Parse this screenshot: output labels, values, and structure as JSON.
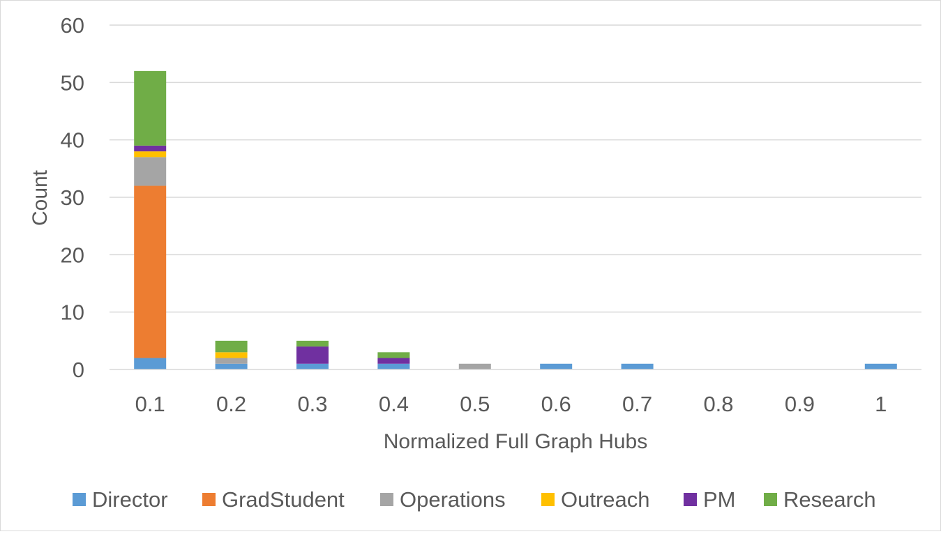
{
  "chart_data": {
    "type": "bar",
    "stacked": true,
    "categories": [
      "0.1",
      "0.2",
      "0.3",
      "0.4",
      "0.5",
      "0.6",
      "0.7",
      "0.8",
      "0.9",
      "1"
    ],
    "series": [
      {
        "name": "Director",
        "color": "#5b9bd5",
        "values": [
          2,
          1,
          1,
          1,
          0,
          1,
          1,
          0,
          0,
          1
        ]
      },
      {
        "name": "GradStudent",
        "color": "#ed7d31",
        "values": [
          30,
          0,
          0,
          0,
          0,
          0,
          0,
          0,
          0,
          0
        ]
      },
      {
        "name": "Operations",
        "color": "#a5a5a5",
        "values": [
          5,
          1,
          0,
          0,
          1,
          0,
          0,
          0,
          0,
          0
        ]
      },
      {
        "name": "Outreach",
        "color": "#ffc000",
        "values": [
          1,
          1,
          0,
          0,
          0,
          0,
          0,
          0,
          0,
          0
        ]
      },
      {
        "name": "PM",
        "color": "#7030a0",
        "values": [
          1,
          0,
          3,
          1,
          0,
          0,
          0,
          0,
          0,
          0
        ]
      },
      {
        "name": "Research",
        "color": "#70ad47",
        "values": [
          13,
          2,
          1,
          1,
          0,
          0,
          0,
          0,
          0,
          0
        ]
      }
    ],
    "xlabel": "Normalized Full Graph Hubs",
    "ylabel": "Count",
    "ylim": [
      0,
      60
    ],
    "yticks": [
      0,
      10,
      20,
      30,
      40,
      50,
      60
    ],
    "grid": true,
    "legend_position": "bottom"
  }
}
